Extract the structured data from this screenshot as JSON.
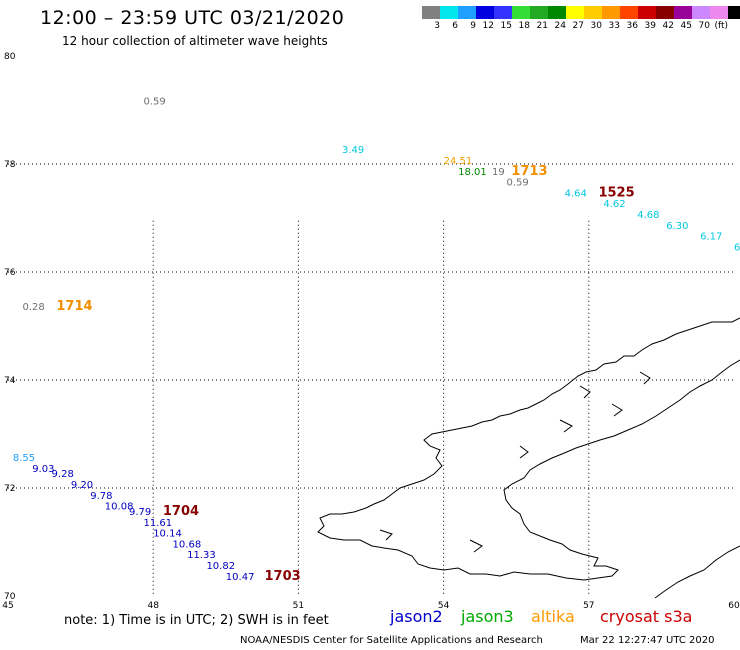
{
  "header": {
    "title": "12:00 – 23:59 UTC 03/21/2020",
    "subtitle": "12 hour collection of altimeter wave heights"
  },
  "color_scale": {
    "colors": [
      "#808080",
      "#00e5ee",
      "#1f9fff",
      "#0000e0",
      "#3333ff",
      "#33dd33",
      "#22aa22",
      "#008800",
      "#ffff00",
      "#ffcc00",
      "#ff9900",
      "#ff4400",
      "#cc0000",
      "#880000",
      "#990099",
      "#cc88ff",
      "#ee88ee",
      "#000000"
    ],
    "labels": [
      "3",
      "6",
      "9",
      "12",
      "15",
      "18",
      "21",
      "24",
      "27",
      "30",
      "33",
      "36",
      "39",
      "42",
      "45",
      "70",
      "(ft)",
      ""
    ]
  },
  "axes": {
    "lat_labels": [
      "80",
      "78",
      "76",
      "74",
      "72",
      "70"
    ],
    "lon_labels": [
      "45",
      "48",
      "51",
      "54",
      "57",
      "60"
    ]
  },
  "observations": [
    {
      "text": "0.59",
      "lon": 47.8,
      "lat": 79.1,
      "color": "#707070"
    },
    {
      "text": "3.49",
      "lon": 51.9,
      "lat": 78.2,
      "color": "#00c8e0"
    },
    {
      "text": "24.51",
      "lon": 54.0,
      "lat": 78.0,
      "color": "#f0a000"
    },
    {
      "text": "18.01",
      "lon": 54.3,
      "lat": 77.8,
      "color": "#008800"
    },
    {
      "text": "19",
      "lon": 55.0,
      "lat": 77.8,
      "color": "#707070"
    },
    {
      "text": "1713",
      "lon": 55.4,
      "lat": 77.8,
      "color": "#f09000",
      "id": true
    },
    {
      "text": "0.59",
      "lon": 55.3,
      "lat": 77.6,
      "color": "#707070"
    },
    {
      "text": "4.64",
      "lon": 56.5,
      "lat": 77.4,
      "color": "#00c8e0"
    },
    {
      "text": "1525",
      "lon": 57.2,
      "lat": 77.4,
      "color": "#880000",
      "id": true
    },
    {
      "text": "4.62",
      "lon": 57.3,
      "lat": 77.2,
      "color": "#00c8e0"
    },
    {
      "text": "4.68",
      "lon": 58.0,
      "lat": 77.0,
      "color": "#00c8e0"
    },
    {
      "text": "6.30",
      "lon": 58.6,
      "lat": 76.8,
      "color": "#00c8e0"
    },
    {
      "text": "6.17",
      "lon": 59.3,
      "lat": 76.6,
      "color": "#00c8e0"
    },
    {
      "text": "6",
      "lon": 60.0,
      "lat": 76.4,
      "color": "#00c8e0"
    },
    {
      "text": "0.28",
      "lon": 45.3,
      "lat": 75.3,
      "color": "#707070"
    },
    {
      "text": "1714",
      "lon": 46.0,
      "lat": 75.3,
      "color": "#f09000",
      "id": true
    },
    {
      "text": "8.55",
      "lon": 45.1,
      "lat": 72.5,
      "color": "#1f9fff"
    },
    {
      "text": "9.03",
      "lon": 45.5,
      "lat": 72.3,
      "color": "#0000c0"
    },
    {
      "text": "9.28",
      "lon": 45.9,
      "lat": 72.2,
      "color": "#0000c0"
    },
    {
      "text": "9.20",
      "lon": 46.3,
      "lat": 72.0,
      "color": "#0000c0"
    },
    {
      "text": "9.78",
      "lon": 46.7,
      "lat": 71.8,
      "color": "#0000c0"
    },
    {
      "text": "10.08",
      "lon": 47.0,
      "lat": 71.6,
      "color": "#0000c0"
    },
    {
      "text": "9.79",
      "lon": 47.5,
      "lat": 71.5,
      "color": "#0000c0"
    },
    {
      "text": "1704",
      "lon": 48.2,
      "lat": 71.5,
      "color": "#880000",
      "id": true
    },
    {
      "text": "11.61",
      "lon": 47.8,
      "lat": 71.3,
      "color": "#0000c0"
    },
    {
      "text": "10.14",
      "lon": 48.0,
      "lat": 71.1,
      "color": "#0000c0"
    },
    {
      "text": "10.68",
      "lon": 48.4,
      "lat": 70.9,
      "color": "#0000c0"
    },
    {
      "text": "11.33",
      "lon": 48.7,
      "lat": 70.7,
      "color": "#0000c0"
    },
    {
      "text": "10.82",
      "lon": 49.1,
      "lat": 70.5,
      "color": "#0000c0"
    },
    {
      "text": "10.47",
      "lon": 49.5,
      "lat": 70.3,
      "color": "#0000c0"
    },
    {
      "text": "1703",
      "lon": 50.3,
      "lat": 70.3,
      "color": "#880000",
      "id": true
    }
  ],
  "footer": {
    "note": "note: 1) Time is in UTC; 2) SWH is in feet",
    "satellites": [
      {
        "name": "jason2",
        "color": "#0000cc"
      },
      {
        "name": "jason3",
        "color": "#00aa00"
      },
      {
        "name": "altika",
        "color": "#ff9900"
      },
      {
        "name": "cryosat s3a",
        "color": "#cc0000"
      }
    ],
    "credit": "NOAA/NESDIS Center for Satellite Applications and Research",
    "timestamp": "Mar 22 12:27:47 UTC 2020"
  }
}
